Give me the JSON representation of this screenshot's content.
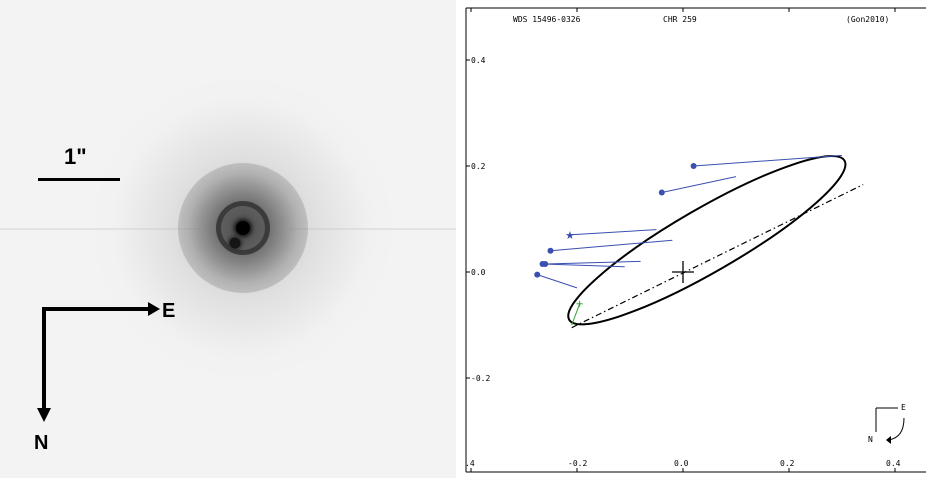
{
  "image_panel": {
    "scale_label": "1\"",
    "east_label": "E",
    "north_label": "N"
  },
  "orbit_plot": {
    "header": {
      "wds_id": "WDS 15496-0326",
      "star_name": "CHR 259",
      "reference": "(Gon2010)"
    },
    "y_tick_labels": [
      "0.4",
      "0.2",
      "0.0",
      "-0.2"
    ],
    "x_tick_labels": [
      ".4",
      "-0.2",
      "0.0",
      "0.2",
      "0.4"
    ],
    "compass": {
      "east_label": "E",
      "north_label": "N"
    },
    "colors": {
      "orbit": "#000000",
      "residuals": "#3a4fb0",
      "observation": "#3a4fb0",
      "speckle_point": "#2aa02a"
    },
    "chart_data": {
      "type": "scatter",
      "title": "",
      "xlabel": "",
      "ylabel": "",
      "xlim": [
        -0.4,
        0.4
      ],
      "ylim": [
        -0.38,
        0.46
      ],
      "primary": [
        0.0,
        0.0
      ],
      "orbit_ellipse": {
        "center": [
          0.045,
          0.06
        ],
        "semi_major": 0.3,
        "semi_minor": 0.06,
        "angle_deg": 30
      },
      "line_of_nodes": [
        [
          -0.21,
          -0.105
        ],
        [
          0.34,
          0.165
        ]
      ],
      "series": [
        {
          "marker": "circle",
          "x": [
            0.02,
            -0.04,
            -0.25,
            -0.26,
            -0.265,
            -0.275
          ],
          "y": [
            0.2,
            0.15,
            0.04,
            0.015,
            0.015,
            -0.005
          ],
          "orbit_x": [
            0.3,
            0.1,
            -0.02,
            -0.08,
            -0.11,
            -0.2
          ],
          "orbit_y": [
            0.22,
            0.18,
            0.06,
            0.02,
            0.01,
            -0.03
          ]
        },
        {
          "marker": "star",
          "x": [
            -0.215
          ],
          "y": [
            0.07
          ],
          "orbit_x": [
            -0.05
          ],
          "orbit_y": [
            0.08
          ]
        },
        {
          "marker": "plus",
          "x": [
            -0.195
          ],
          "y": [
            -0.06
          ],
          "orbit_x": [
            -0.21
          ],
          "orbit_y": [
            -0.1
          ]
        }
      ]
    }
  }
}
